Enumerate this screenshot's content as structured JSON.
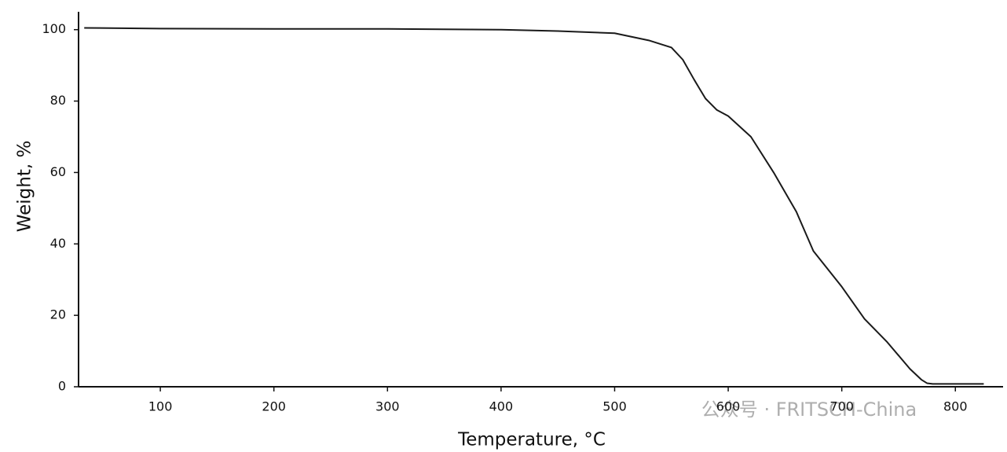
{
  "chart_data": {
    "type": "line",
    "x_label": "Temperature, °C",
    "y_label": "Weight, %",
    "watermark": "公众号 · FRITSCH-China",
    "xlim": [
      28,
      842
    ],
    "ylim": [
      0,
      105
    ],
    "xticks": [
      100,
      200,
      300,
      400,
      500,
      600,
      700,
      800
    ],
    "yticks": [
      0,
      20,
      40,
      60,
      80,
      100
    ],
    "grid": false,
    "series": [
      {
        "color": "#1a1a1a",
        "x": [
          33,
          100,
          200,
          300,
          400,
          450,
          500,
          530,
          550,
          560,
          570,
          580,
          590,
          600,
          620,
          640,
          660,
          675,
          700,
          720,
          740,
          760,
          770,
          775,
          780,
          825
        ],
        "values": [
          100.5,
          100.3,
          100.2,
          100.2,
          100,
          99.6,
          99,
          97,
          95,
          91.6,
          86,
          80.7,
          77.5,
          75.8,
          70,
          60,
          49,
          38,
          28,
          19,
          12.5,
          5,
          2,
          1,
          0.8,
          0.8
        ]
      }
    ]
  }
}
